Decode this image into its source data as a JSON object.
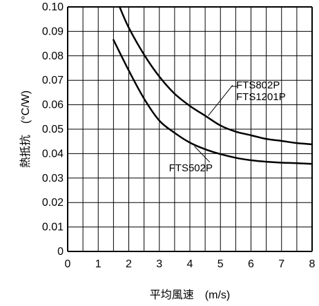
{
  "chart_data": {
    "type": "line",
    "xlabel": "平均風速　(m/s)",
    "ylabel": "熱抵抗　(°C/W)",
    "xlim": [
      0,
      8
    ],
    "ylim": [
      0,
      0.1
    ],
    "x_ticks": [
      "0",
      "1",
      "2",
      "3",
      "4",
      "5",
      "6",
      "7",
      "8"
    ],
    "y_ticks": [
      "0",
      "0.01",
      "0.02",
      "0.03",
      "0.04",
      "0.05",
      "0.06",
      "0.07",
      "0.08",
      "0.09",
      "0.10"
    ],
    "grid": true,
    "series": [
      {
        "name": "FTS802P",
        "name2": "FTS1201P",
        "points": [
          [
            1.7,
            0.1
          ],
          [
            2.0,
            0.0915
          ],
          [
            2.5,
            0.0805
          ],
          [
            3.0,
            0.0715
          ],
          [
            3.5,
            0.0645
          ],
          [
            4.0,
            0.0595
          ],
          [
            4.5,
            0.0555
          ],
          [
            5.0,
            0.0515
          ],
          [
            5.5,
            0.049
          ],
          [
            6.0,
            0.0475
          ],
          [
            6.5,
            0.046
          ],
          [
            7.0,
            0.0452
          ],
          [
            7.5,
            0.0443
          ],
          [
            8.0,
            0.0438
          ]
        ]
      },
      {
        "name": "FTS502P",
        "points": [
          [
            1.5,
            0.0865
          ],
          [
            2.0,
            0.074
          ],
          [
            2.5,
            0.0625
          ],
          [
            3.0,
            0.0535
          ],
          [
            3.5,
            0.0485
          ],
          [
            4.0,
            0.0445
          ],
          [
            4.5,
            0.0418
          ],
          [
            5.0,
            0.0398
          ],
          [
            5.5,
            0.0383
          ],
          [
            6.0,
            0.0373
          ],
          [
            6.5,
            0.0367
          ],
          [
            7.0,
            0.0363
          ],
          [
            7.5,
            0.0361
          ],
          [
            8.0,
            0.0358
          ]
        ]
      }
    ]
  }
}
